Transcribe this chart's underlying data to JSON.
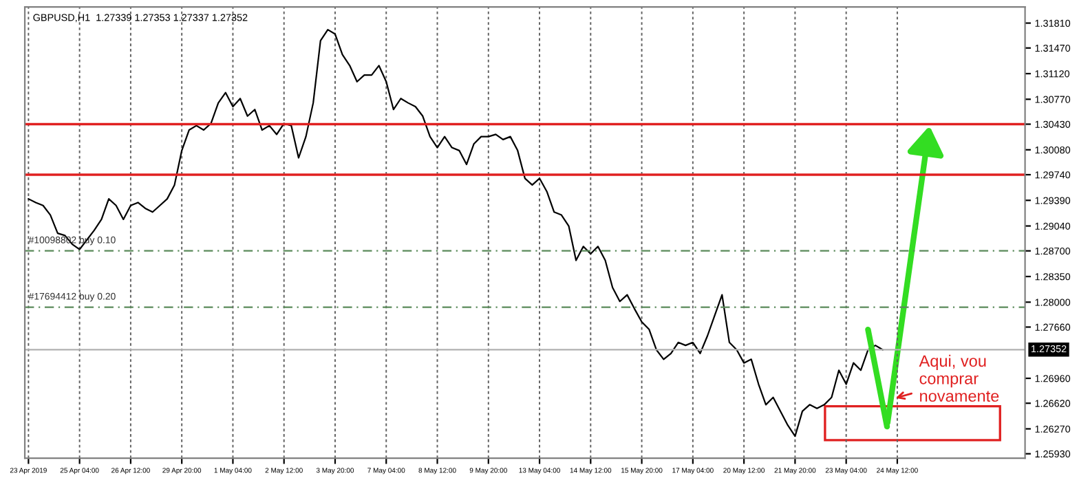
{
  "chart_data": {
    "type": "line",
    "title": "GBPUSD,H1  1.27339 1.27353 1.27337 1.27352",
    "categories": [
      "23 Apr 2019",
      null,
      null,
      null,
      null,
      null,
      null,
      "25 Apr 04:00",
      null,
      null,
      null,
      null,
      null,
      null,
      "26 Apr 12:00",
      null,
      null,
      null,
      null,
      null,
      null,
      "29 Apr 20:00",
      null,
      null,
      null,
      null,
      null,
      null,
      "1 May 04:00",
      null,
      null,
      null,
      null,
      null,
      null,
      "2 May 12:00",
      null,
      null,
      null,
      null,
      null,
      null,
      "3 May 20:00",
      null,
      null,
      null,
      null,
      null,
      null,
      "7 May 04:00",
      null,
      null,
      null,
      null,
      null,
      null,
      "8 May 12:00",
      null,
      null,
      null,
      null,
      null,
      null,
      "9 May 20:00",
      null,
      null,
      null,
      null,
      null,
      null,
      "13 May 04:00",
      null,
      null,
      null,
      null,
      null,
      null,
      "14 May 12:00",
      null,
      null,
      null,
      null,
      null,
      null,
      "15 May 20:00",
      null,
      null,
      null,
      null,
      null,
      null,
      "17 May 04:00",
      null,
      null,
      null,
      null,
      null,
      null,
      "20 May 12:00",
      null,
      null,
      null,
      null,
      null,
      null,
      "21 May 20:00",
      null,
      null,
      null,
      null,
      null,
      null,
      "23 May 04:00",
      null,
      null,
      null,
      null,
      null,
      null,
      "24 May 12:00",
      null,
      null,
      null,
      null,
      null,
      null,
      null,
      null,
      null,
      null,
      null,
      null,
      null,
      null,
      null,
      null,
      null
    ],
    "series": [
      {
        "color": "#000000",
        "values": [
          1.2941,
          1.2936,
          1.2932,
          1.2919,
          1.2894,
          1.2891,
          1.2879,
          1.2872,
          1.2885,
          1.2898,
          1.2913,
          1.2941,
          1.2932,
          1.2913,
          1.2932,
          1.2936,
          1.2928,
          1.2923,
          1.2932,
          1.2941,
          1.296,
          1.3007,
          1.3035,
          1.3041,
          1.3035,
          1.3044,
          1.3072,
          1.3086,
          1.3067,
          1.3078,
          1.3054,
          1.3063,
          1.3035,
          1.3041,
          1.3029,
          1.3044,
          1.3041,
          1.2997,
          1.3026,
          1.3072,
          1.3157,
          1.3172,
          1.3166,
          1.3138,
          1.3123,
          1.3101,
          1.311,
          1.311,
          1.3123,
          1.3101,
          1.3063,
          1.3078,
          1.3072,
          1.3067,
          1.3054,
          1.3026,
          1.3011,
          1.3026,
          1.3011,
          1.3007,
          1.2988,
          1.3016,
          1.3026,
          1.3026,
          1.3029,
          1.3022,
          1.3026,
          1.3007,
          1.2969,
          1.296,
          1.2969,
          1.2951,
          1.2923,
          1.2919,
          1.2904,
          1.2857,
          1.2876,
          1.2866,
          1.2876,
          1.2857,
          1.282,
          1.2801,
          1.281,
          1.2791,
          1.2773,
          1.2763,
          1.2735,
          1.2722,
          1.273,
          1.2745,
          1.2741,
          1.2745,
          1.273,
          1.2754,
          1.2782,
          1.281,
          1.2745,
          1.2735,
          1.2717,
          1.2722,
          1.2688,
          1.266,
          1.267,
          1.2651,
          1.2632,
          1.2617,
          1.2651,
          1.266,
          1.2655,
          1.266,
          1.267,
          1.2707,
          1.2688,
          1.2717,
          1.2707,
          1.2735,
          1.2741,
          1.2735,
          null,
          null,
          null,
          null,
          null,
          null,
          null,
          null,
          null,
          null,
          null,
          null,
          null,
          null,
          null,
          null,
          null,
          null,
          null
        ]
      }
    ],
    "ylim": [
      1.2587,
      1.3203
    ],
    "yticks": [
      {
        "value": 1.3181,
        "label": "1.31810"
      },
      {
        "value": 1.3147,
        "label": "1.31470"
      },
      {
        "value": 1.3112,
        "label": "1.31120"
      },
      {
        "value": 1.3077,
        "label": "1.30770"
      },
      {
        "value": 1.3043,
        "label": "1.30430"
      },
      {
        "value": 1.3008,
        "label": "1.30080"
      },
      {
        "value": 1.2974,
        "label": "1.29740"
      },
      {
        "value": 1.2939,
        "label": "1.29390"
      },
      {
        "value": 1.2904,
        "label": "1.29040"
      },
      {
        "value": 1.287,
        "label": "1.28700"
      },
      {
        "value": 1.2835,
        "label": "1.28350"
      },
      {
        "value": 1.28,
        "label": "1.28000"
      },
      {
        "value": 1.2766,
        "label": "1.27660"
      },
      {
        "value": 1.2696,
        "label": "1.26960"
      },
      {
        "value": 1.2662,
        "label": "1.26620"
      },
      {
        "value": 1.2627,
        "label": "1.26270"
      },
      {
        "value": 1.2593,
        "label": "1.25930"
      }
    ],
    "grid": "x",
    "ref_lines": [
      {
        "axis": "y",
        "value": 1.3043,
        "color": "#e02020",
        "line_style": "solid"
      },
      {
        "axis": "y",
        "value": 1.2974,
        "color": "#e02020",
        "line_style": "solid"
      },
      {
        "axis": "y",
        "value": 1.287,
        "label": "#10098802 buy 0.10",
        "color": "#5a8a5a",
        "line_style": "dashed"
      },
      {
        "axis": "y",
        "value": 1.2793,
        "label": "#17694412 buy 0.20",
        "color": "#5a8a5a",
        "line_style": "dashed"
      },
      {
        "axis": "y",
        "value": 1.27352,
        "label": "1.27352",
        "color": "#b0b0b0",
        "line_style": "solid"
      }
    ],
    "annotations": [
      "Aqui, vou comprar novamente"
    ]
  }
}
